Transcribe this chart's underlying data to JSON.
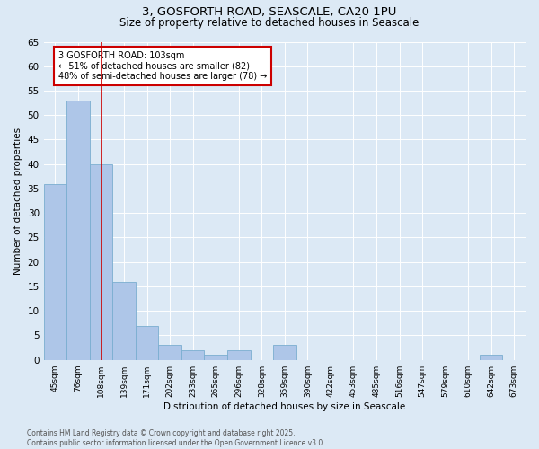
{
  "title1": "3, GOSFORTH ROAD, SEASCALE, CA20 1PU",
  "title2": "Size of property relative to detached houses in Seascale",
  "xlabel": "Distribution of detached houses by size in Seascale",
  "ylabel": "Number of detached properties",
  "footnote1": "Contains HM Land Registry data © Crown copyright and database right 2025.",
  "footnote2": "Contains public sector information licensed under the Open Government Licence v3.0.",
  "categories": [
    "45sqm",
    "76sqm",
    "108sqm",
    "139sqm",
    "171sqm",
    "202sqm",
    "233sqm",
    "265sqm",
    "296sqm",
    "328sqm",
    "359sqm",
    "390sqm",
    "422sqm",
    "453sqm",
    "485sqm",
    "516sqm",
    "547sqm",
    "579sqm",
    "610sqm",
    "642sqm",
    "673sqm"
  ],
  "values": [
    36,
    53,
    40,
    16,
    7,
    3,
    2,
    1,
    2,
    0,
    3,
    0,
    0,
    0,
    0,
    0,
    0,
    0,
    0,
    1,
    0
  ],
  "bar_color": "#aec6e8",
  "bar_edge_color": "#7aaed0",
  "vline_x": 2.0,
  "vline_color": "#cc0000",
  "annotation_text": "3 GOSFORTH ROAD: 103sqm\n← 51% of detached houses are smaller (82)\n48% of semi-detached houses are larger (78) →",
  "annotation_box_color": "#ffffff",
  "annotation_box_edge": "#cc0000",
  "bg_color": "#dce9f5",
  "plot_bg_color": "#dce9f5",
  "ylim": [
    0,
    65
  ],
  "yticks": [
    0,
    5,
    10,
    15,
    20,
    25,
    30,
    35,
    40,
    45,
    50,
    55,
    60,
    65
  ]
}
